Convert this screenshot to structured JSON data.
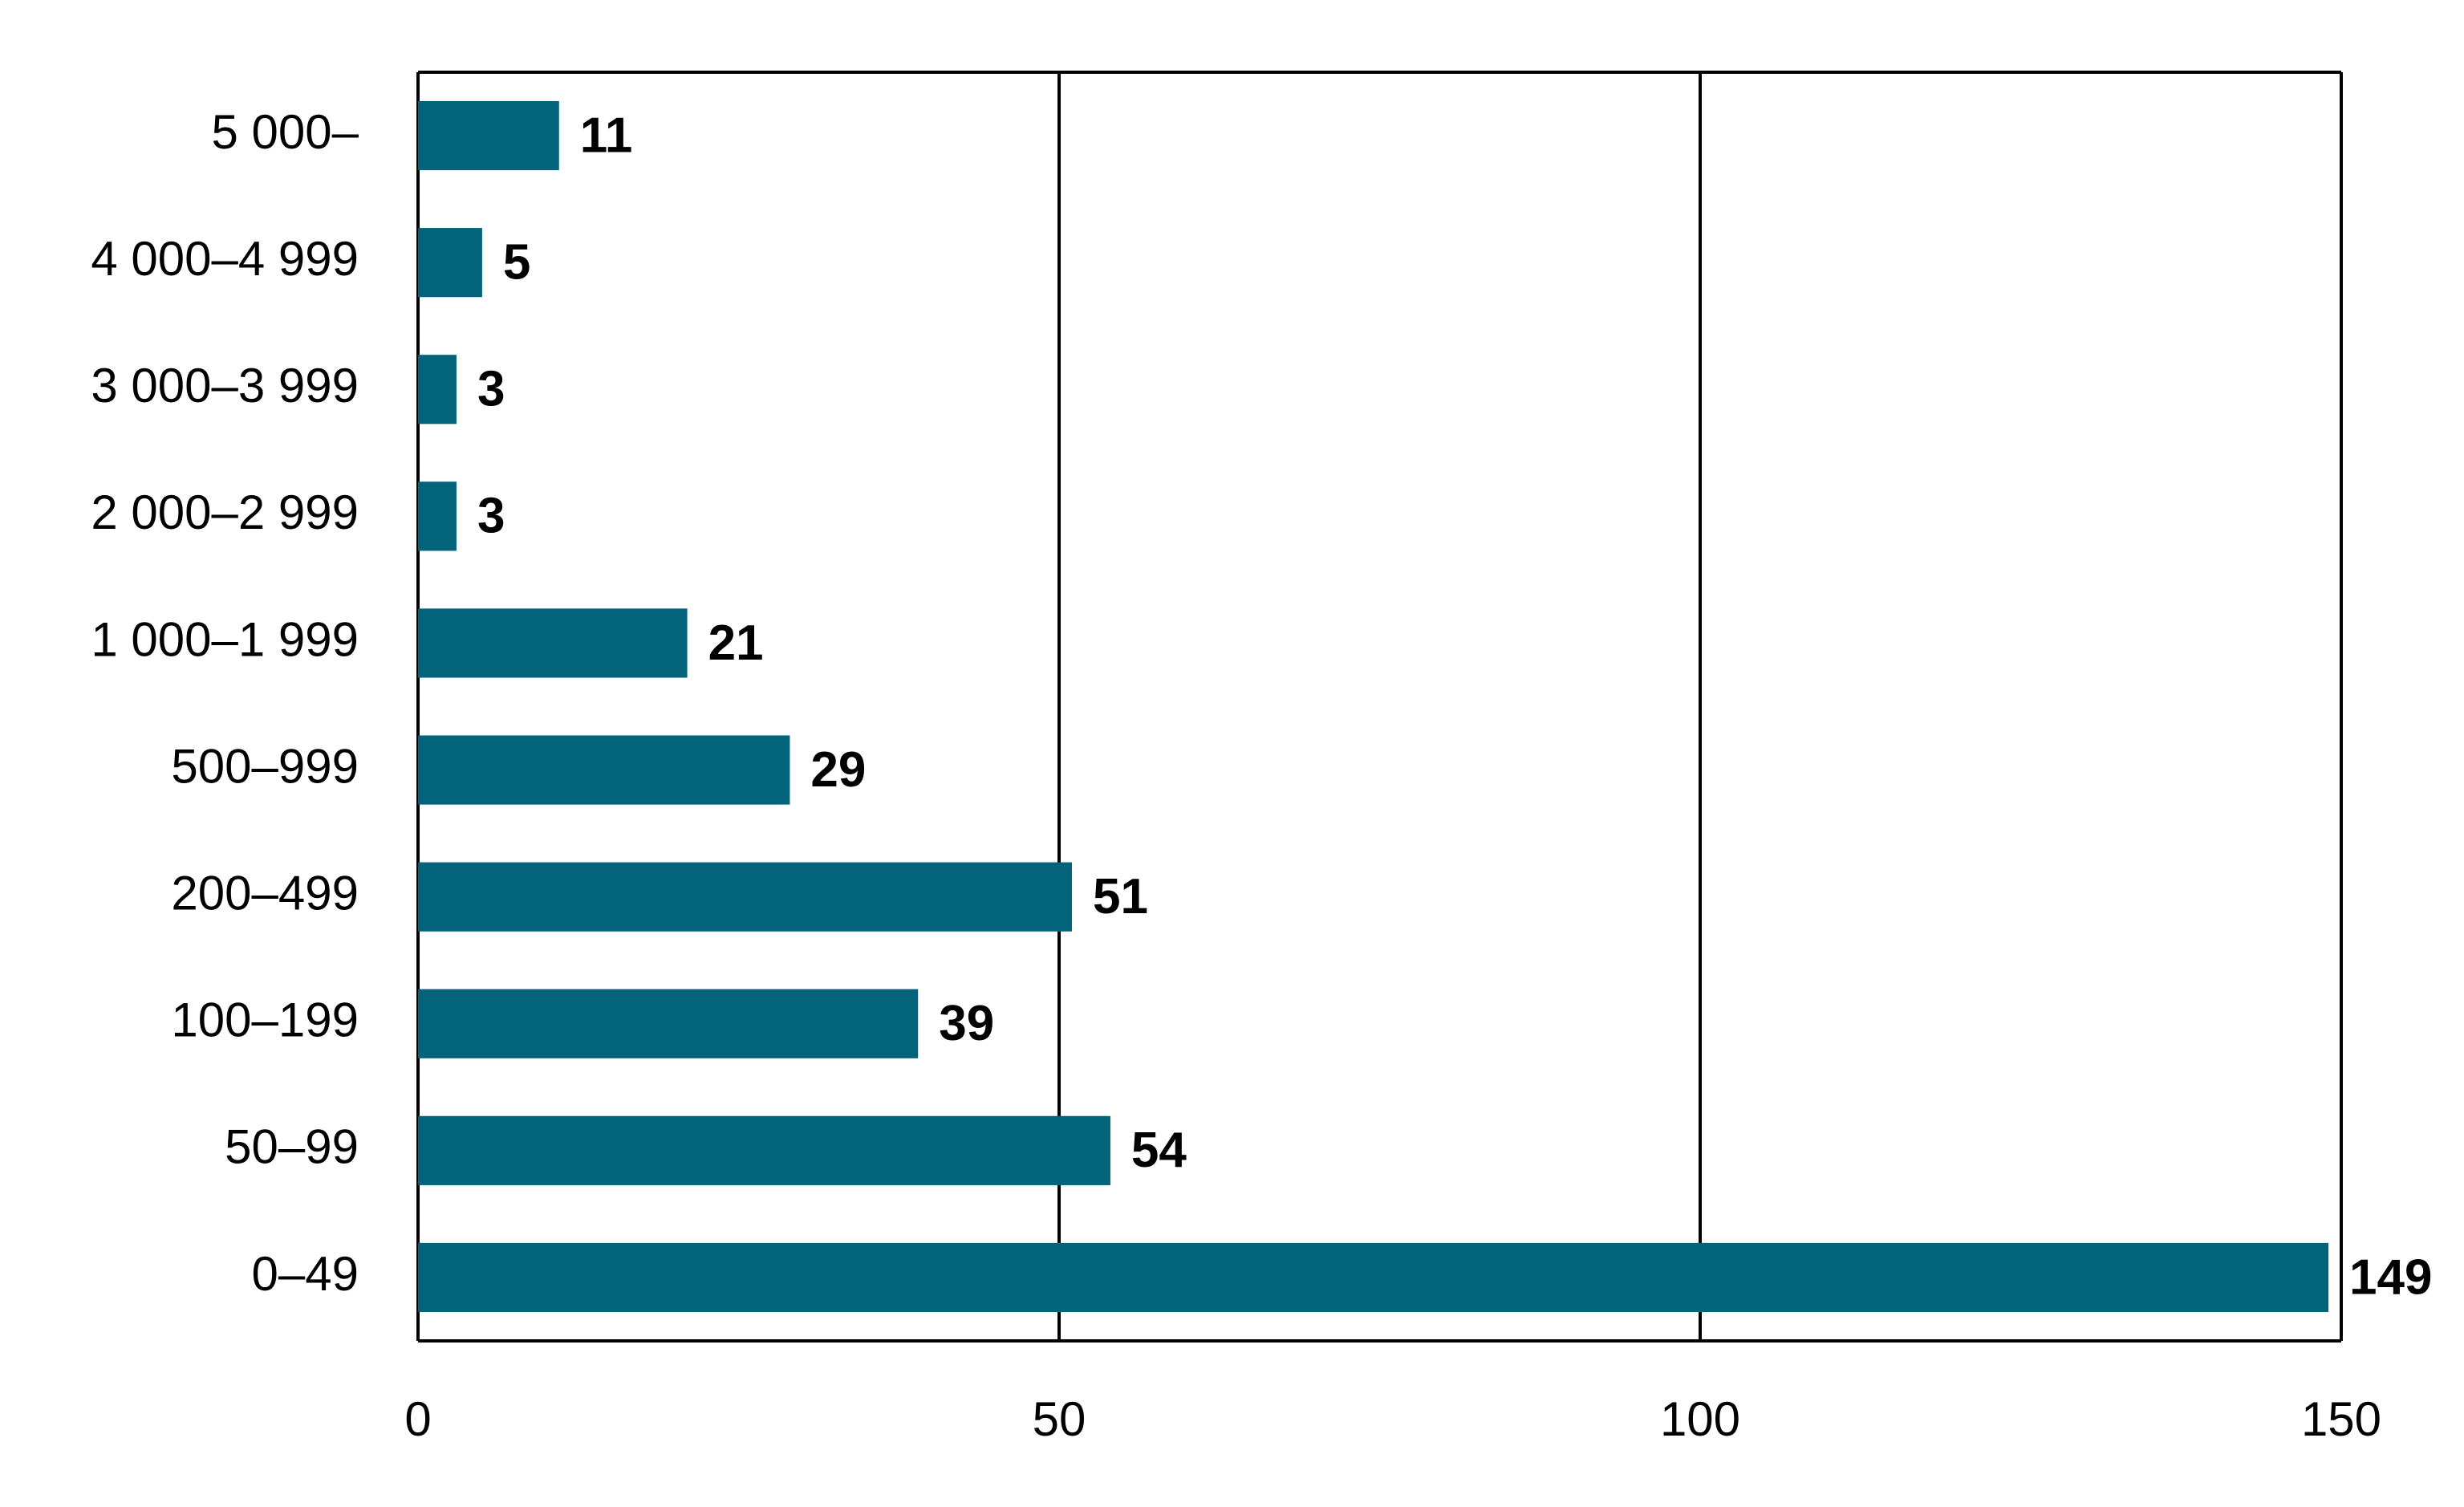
{
  "chart_data": {
    "type": "bar",
    "orientation": "horizontal",
    "categories": [
      "5 000–",
      "4 000–4 999",
      "3 000–3 999",
      "2 000–2 999",
      "1 000–1 999",
      "500–999",
      "200–499",
      "100–199",
      "50–99",
      "0–49"
    ],
    "values": [
      11,
      5,
      3,
      3,
      21,
      29,
      51,
      39,
      54,
      149
    ],
    "color": "#03637b",
    "xlim": [
      0,
      150
    ],
    "xticks": [
      0,
      50,
      100,
      150
    ],
    "grid": true
  }
}
